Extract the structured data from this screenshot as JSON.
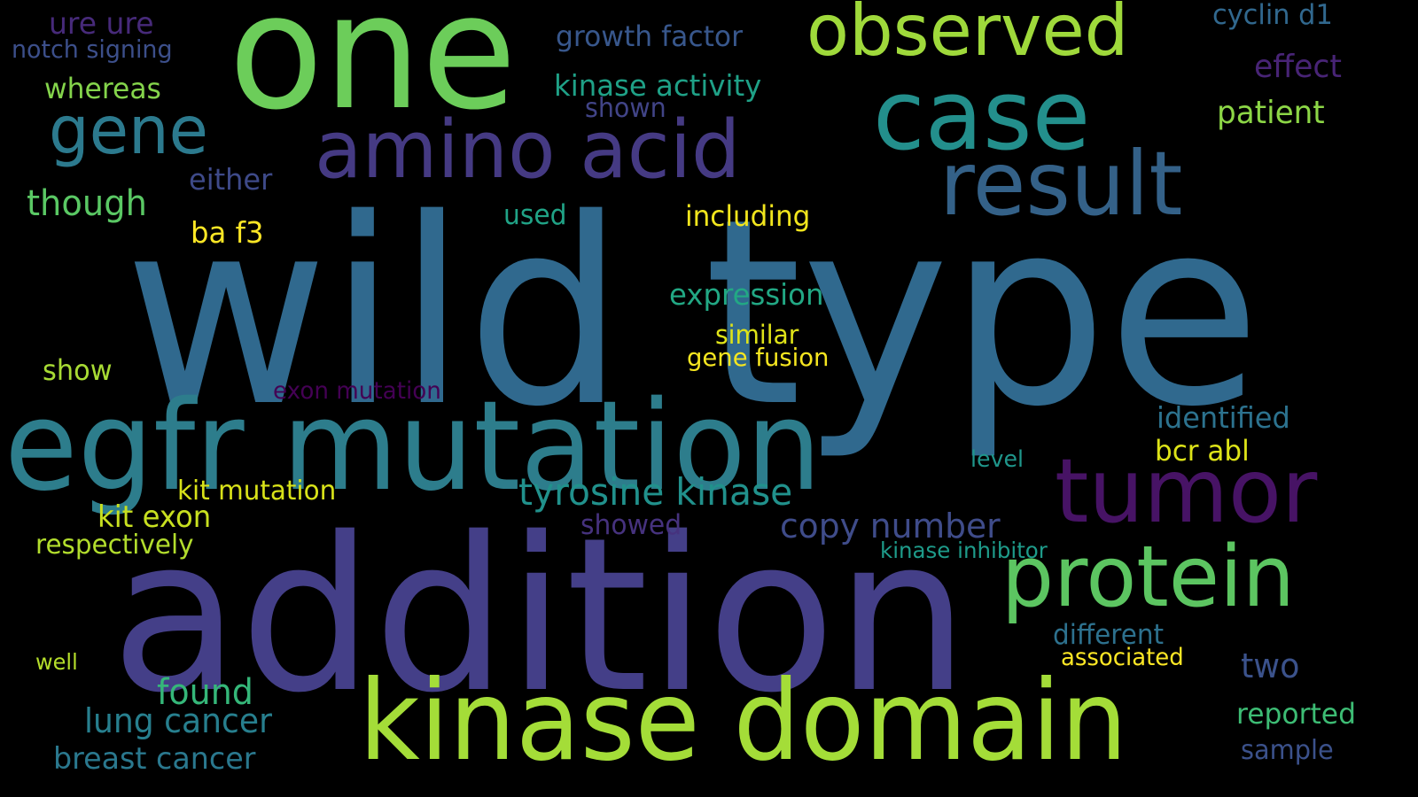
{
  "background_color": "#000000",
  "words": [
    {
      "text": "wild type",
      "color": "#30698e"
    },
    {
      "text": "addition",
      "color": "#443f88"
    },
    {
      "text": "one",
      "color": "#6ccd5a"
    },
    {
      "text": "egfr mutation",
      "color": "#2d7d8c"
    },
    {
      "text": "kinase domain",
      "color": "#a4dd38"
    },
    {
      "text": "case",
      "color": "#238f8c"
    },
    {
      "text": "tumor",
      "color": "#471365"
    },
    {
      "text": "result",
      "color": "#346188"
    },
    {
      "text": "amino acid",
      "color": "#453a83"
    },
    {
      "text": "protein",
      "color": "#5cc561"
    },
    {
      "text": "observed",
      "color": "#9fd93b"
    },
    {
      "text": "gene",
      "color": "#2c7a8e"
    },
    {
      "text": "tyrosine kinase",
      "color": "#21918c"
    },
    {
      "text": "copy number",
      "color": "#3f4c8a"
    },
    {
      "text": "kit exon",
      "color": "#c8e020"
    },
    {
      "text": "found",
      "color": "#35b779"
    },
    {
      "text": "lung cancer",
      "color": "#277f8e"
    },
    {
      "text": "breast cancer",
      "color": "#2a788e"
    },
    {
      "text": "kit mutation",
      "color": "#d8e219"
    },
    {
      "text": "expression",
      "color": "#22a884"
    },
    {
      "text": "though",
      "color": "#5ac864"
    },
    {
      "text": "patient",
      "color": "#8cd646"
    },
    {
      "text": "identified",
      "color": "#2c728e"
    },
    {
      "text": "bcr abl",
      "color": "#dde318"
    },
    {
      "text": "effect",
      "color": "#482476"
    },
    {
      "text": "two",
      "color": "#3b528b"
    },
    {
      "text": "reported",
      "color": "#3dbc74"
    },
    {
      "text": "kinase activity",
      "color": "#1fa187"
    },
    {
      "text": "growth factor",
      "color": "#38578c"
    },
    {
      "text": "ure ure",
      "color": "#472a7a"
    },
    {
      "text": "notch signing",
      "color": "#3c4f8a"
    },
    {
      "text": "whereas",
      "color": "#84d44b"
    },
    {
      "text": "shown",
      "color": "#414487"
    },
    {
      "text": "either",
      "color": "#3e4a89"
    },
    {
      "text": "ba f3",
      "color": "#fde725"
    },
    {
      "text": "used",
      "color": "#20a386"
    },
    {
      "text": "including",
      "color": "#f1e51d"
    },
    {
      "text": "similar",
      "color": "#dfe318"
    },
    {
      "text": "gene fusion",
      "color": "#f6e620"
    },
    {
      "text": "show",
      "color": "#a8db34"
    },
    {
      "text": "exon mutation",
      "color": "#440154"
    },
    {
      "text": "level",
      "color": "#1f968b"
    },
    {
      "text": "showed",
      "color": "#46327e"
    },
    {
      "text": "respectively",
      "color": "#b2dd2d"
    },
    {
      "text": "kinase inhibitor",
      "color": "#1e9b8a"
    },
    {
      "text": "different",
      "color": "#2d718e"
    },
    {
      "text": "associated",
      "color": "#fde725"
    },
    {
      "text": "well",
      "color": "#b5de2b"
    },
    {
      "text": "sample",
      "color": "#3b518b"
    },
    {
      "text": "cyclin d1",
      "color": "#31688e"
    }
  ]
}
